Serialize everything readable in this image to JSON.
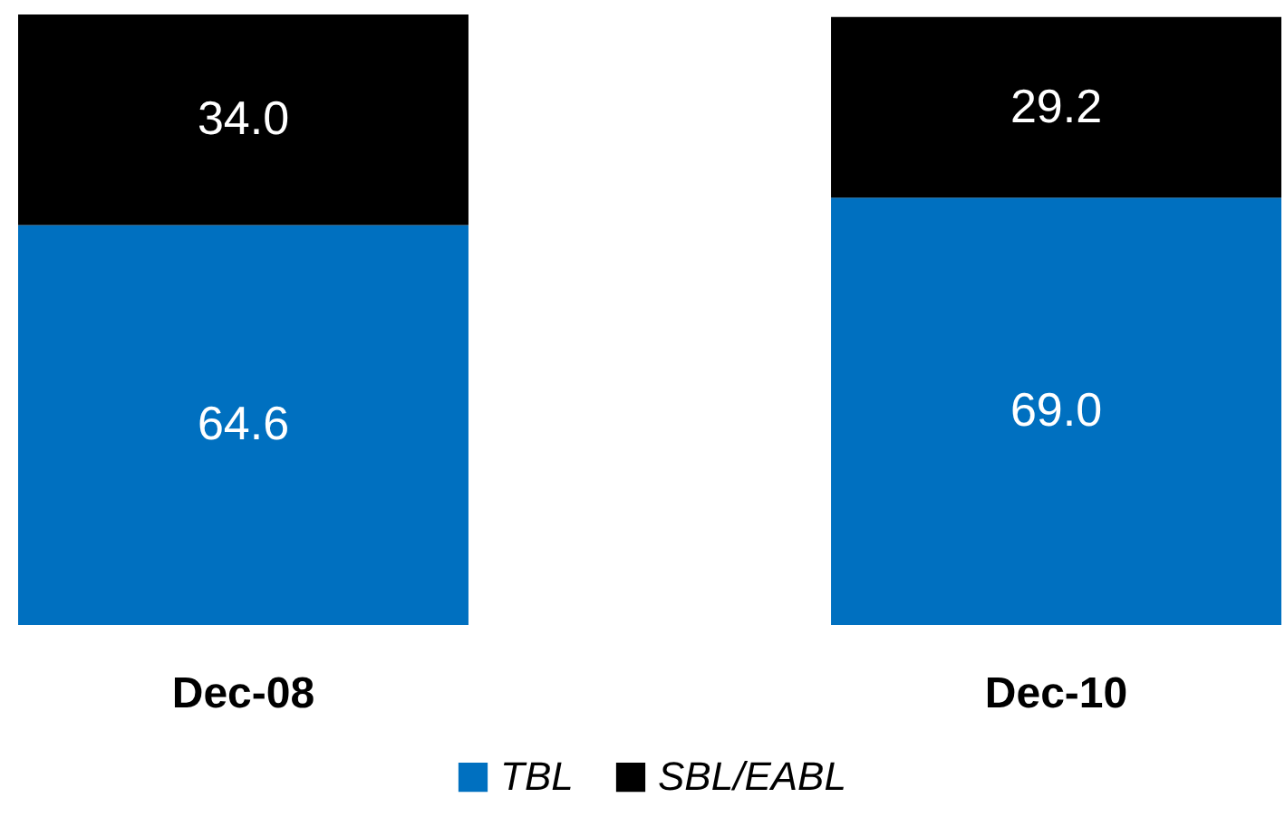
{
  "chart_data": {
    "type": "bar",
    "stacked": true,
    "categories": [
      "Dec-08",
      "Dec-10"
    ],
    "series": [
      {
        "name": "TBL",
        "color": "#0070c0",
        "values": [
          64.6,
          69.0
        ],
        "value_labels": [
          "64.6",
          "69.0"
        ]
      },
      {
        "name": "SBL/EABL",
        "color": "#000000",
        "values": [
          34.0,
          29.2
        ],
        "value_labels": [
          "34.0",
          "29.2"
        ]
      }
    ],
    "legend": "bottom"
  }
}
